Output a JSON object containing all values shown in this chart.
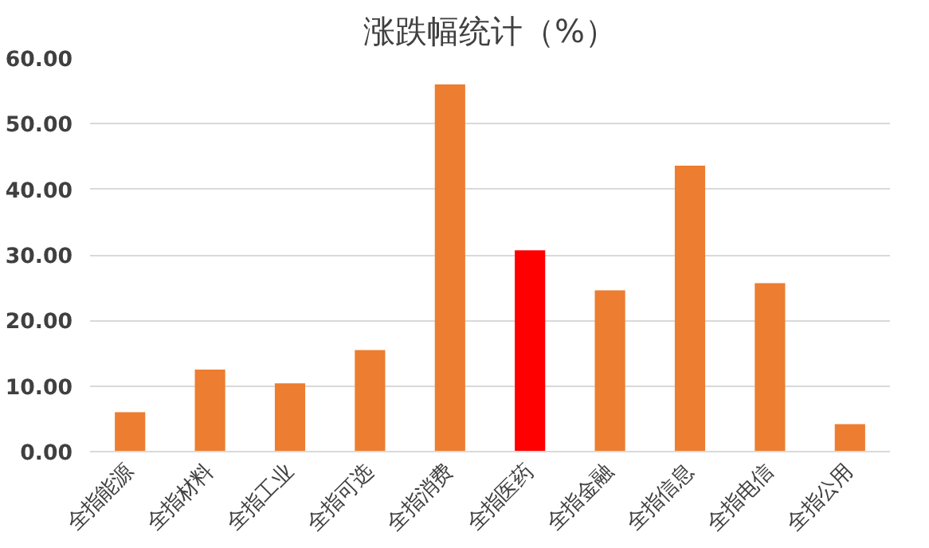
{
  "chart_data": {
    "type": "bar",
    "title": "涨跌幅统计（%）",
    "categories": [
      "全指能源",
      "全指材料",
      "全指工业",
      "全指可选",
      "全指消费",
      "全指医药",
      "全指金融",
      "全指信息",
      "全指电信",
      "全指公用"
    ],
    "values": [
      6.0,
      12.5,
      10.4,
      15.5,
      56.0,
      30.7,
      24.6,
      43.6,
      25.7,
      4.2
    ],
    "colors": [
      "#ed7d31",
      "#ed7d31",
      "#ed7d31",
      "#ed7d31",
      "#ed7d31",
      "#ff0000",
      "#ed7d31",
      "#ed7d31",
      "#ed7d31",
      "#ed7d31"
    ],
    "ylim": [
      0,
      60
    ],
    "yticks": [
      {
        "value": 0,
        "label": "0.00"
      },
      {
        "value": 10,
        "label": "10.00"
      },
      {
        "value": 20,
        "label": "20.00"
      },
      {
        "value": 30,
        "label": "30.00"
      },
      {
        "value": 40,
        "label": "40.00"
      },
      {
        "value": 50,
        "label": "50.00"
      },
      {
        "value": 60,
        "label": "60.00"
      }
    ],
    "grid": "y"
  }
}
